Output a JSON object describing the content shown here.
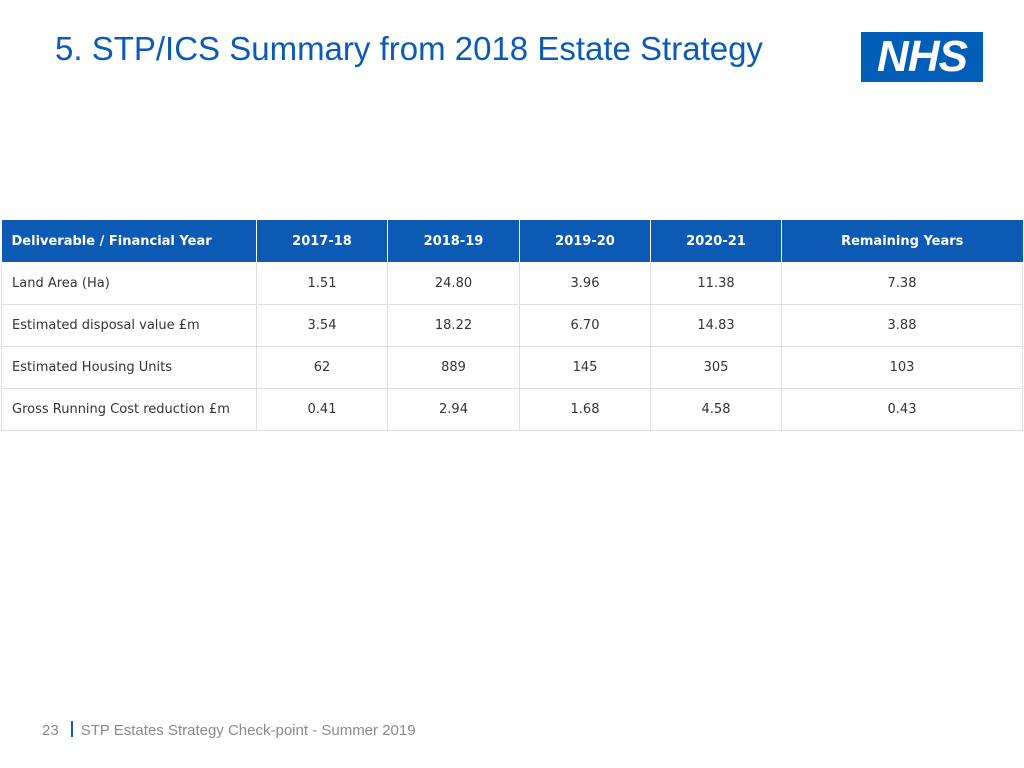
{
  "slide": {
    "title": "5. STP/ICS Summary from 2018 Estate Strategy",
    "logo_text": "NHS",
    "brand_color": "#005eb8",
    "header_color": "#0d5ab5"
  },
  "table": {
    "headers": [
      "Deliverable / Financial Year",
      "2017-18",
      "2018-19",
      "2019-20",
      "2020-21",
      "Remaining Years"
    ],
    "rows": [
      [
        "Land Area (Ha)",
        "1.51",
        "24.80",
        "3.96",
        "11.38",
        "7.38"
      ],
      [
        "Estimated disposal value £m",
        "3.54",
        "18.22",
        "6.70",
        "14.83",
        "3.88"
      ],
      [
        "Estimated Housing Units",
        "62",
        "889",
        "145",
        "305",
        "103"
      ],
      [
        "Gross Running Cost reduction £m",
        "0.41",
        "2.94",
        "1.68",
        "4.58",
        "0.43"
      ]
    ]
  },
  "footer": {
    "page_number": "23",
    "text": "STP Estates Strategy Check-point - Summer 2019"
  }
}
